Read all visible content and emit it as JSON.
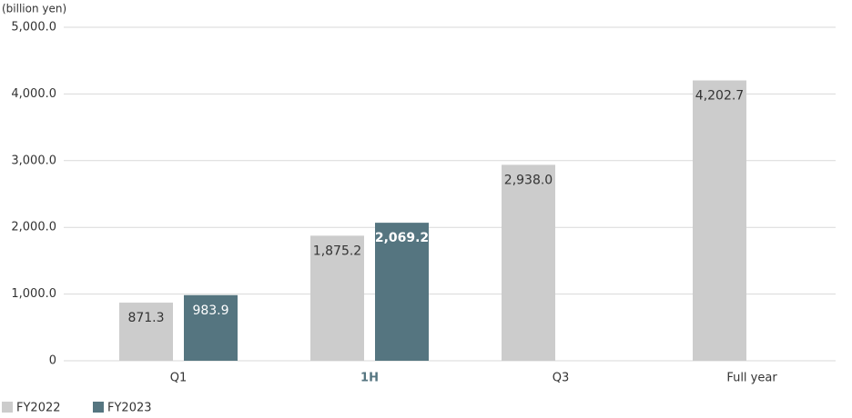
{
  "chart_data": {
    "type": "bar",
    "y_label": "(billion yen)",
    "categories": [
      "Q1",
      "1H",
      "Q3",
      "Full year"
    ],
    "series": [
      {
        "name": "FY2022",
        "color": "#cccccc",
        "values": [
          871.3,
          1875.2,
          2938.0,
          4202.7
        ],
        "value_labels": [
          "871.3",
          "1,875.2",
          "2,938.0",
          "4,202.7"
        ]
      },
      {
        "name": "FY2023",
        "color": "#557580",
        "values": [
          983.9,
          2069.2,
          null,
          null
        ],
        "value_labels": [
          "983.9",
          "2,069.2",
          null,
          null
        ]
      }
    ],
    "ylim": [
      0,
      5000
    ],
    "yticks": [
      0,
      {
        "value": 1000,
        "label": "1,000.0"
      },
      {
        "value": 2000,
        "label": "2,000.0"
      },
      {
        "value": 3000,
        "label": "3,000.0"
      },
      {
        "value": 4000,
        "label": "4,000.0"
      },
      {
        "value": 5000,
        "label": "5,000.0"
      }
    ],
    "grid": true
  }
}
